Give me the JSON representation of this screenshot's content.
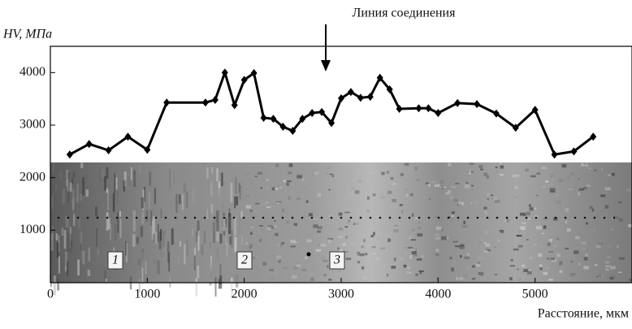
{
  "chart_data": {
    "type": "line",
    "annotation": "Линия соединения",
    "ylabel": "HV, МПа",
    "xlabel": "Расстояние, мкм",
    "region_labels": [
      "1",
      "2",
      "3"
    ],
    "color": "#000000",
    "x": [
      200,
      400,
      600,
      800,
      1000,
      1200,
      1600,
      1700,
      1800,
      1900,
      2000,
      2100,
      2200,
      2300,
      2400,
      2500,
      2600,
      2700,
      2800,
      2900,
      3000,
      3100,
      3200,
      3300,
      3400,
      3500,
      3600,
      3800,
      3900,
      4000,
      4200,
      4400,
      4600,
      4800,
      5000,
      5200,
      5400,
      5600
    ],
    "values": [
      2440,
      2640,
      2520,
      2780,
      2530,
      3430,
      3430,
      3480,
      4000,
      3380,
      3860,
      3990,
      3140,
      3120,
      2970,
      2890,
      3120,
      3230,
      3250,
      3040,
      3510,
      3630,
      3520,
      3540,
      3900,
      3680,
      3310,
      3320,
      3320,
      3230,
      3420,
      3400,
      3220,
      2950,
      3290,
      2440,
      2500,
      2780
    ],
    "xlim": [
      0,
      6000
    ],
    "xticks": [
      0,
      1000,
      2000,
      3000,
      4000,
      5000
    ],
    "ylim": [
      0,
      4500
    ],
    "yticks": [
      1000,
      2000,
      3000,
      4000
    ]
  }
}
